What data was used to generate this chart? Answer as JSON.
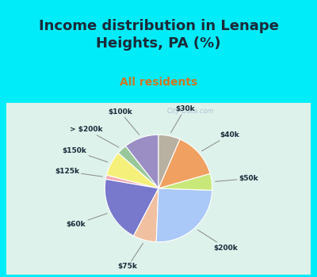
{
  "title": "Income distribution in Lenape\nHeights, PA (%)",
  "subtitle": "All residents",
  "labels": [
    "$100k",
    "> $200k",
    "$150k",
    "$125k",
    "$60k",
    "$75k",
    "$200k",
    "$50k",
    "$40k",
    "$30k"
  ],
  "sizes": [
    10.5,
    3.0,
    7.5,
    1.2,
    20.0,
    7.0,
    25.0,
    5.0,
    14.0,
    6.5
  ],
  "colors": [
    "#9b8ec4",
    "#98c89a",
    "#f5f07a",
    "#f0a8b0",
    "#7878cc",
    "#f0c0a0",
    "#aac8f8",
    "#c8e87a",
    "#f0a060",
    "#b8b0a0"
  ],
  "title_color": "#1a2a3a",
  "subtitle_color": "#cc7722",
  "bg_color": "#00ecf8",
  "chart_bg": "#e0f5ec",
  "startangle": 90,
  "title_fontsize": 13,
  "subtitle_fontsize": 10,
  "watermark": "City-Data.com"
}
